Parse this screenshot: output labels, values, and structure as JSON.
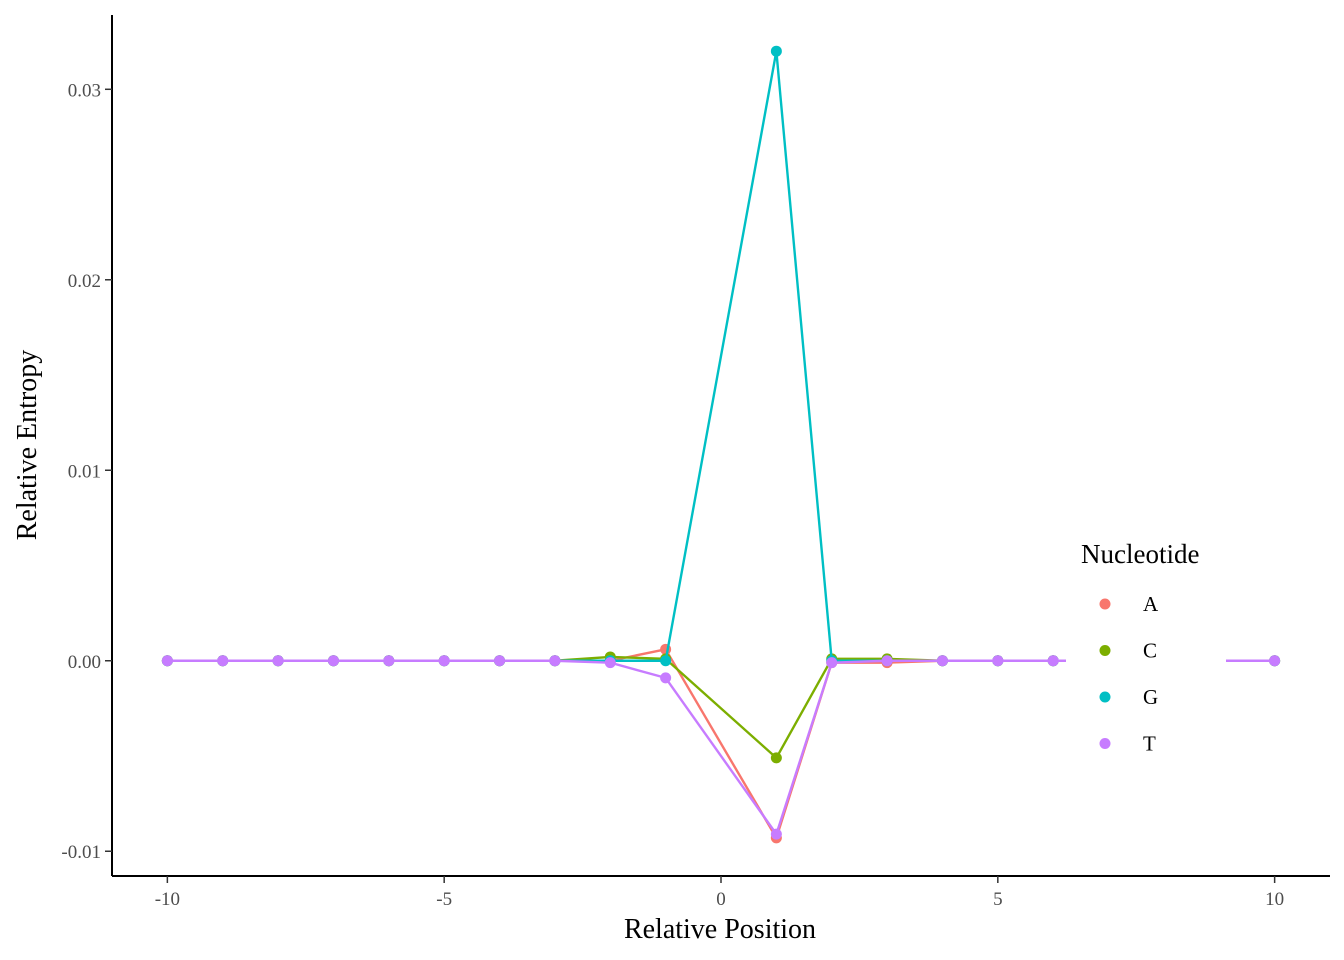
{
  "chart_data": {
    "type": "line",
    "title": "",
    "xlabel": "Relative Position",
    "ylabel": "Relative Entropy",
    "xlim": [
      -11,
      11
    ],
    "ylim": [
      -0.0113,
      0.0339
    ],
    "x_ticks": [
      -10,
      -5,
      0,
      5,
      10
    ],
    "x_tick_labels": [
      "-10",
      "-5",
      "0",
      "5",
      "10"
    ],
    "y_ticks": [
      -0.01,
      0.0,
      0.01,
      0.02,
      0.03
    ],
    "y_tick_labels": [
      "-0.01",
      "0.00",
      "0.01",
      "0.02",
      "0.03"
    ],
    "grid": false,
    "legend": {
      "title": "Nucleotide",
      "position": "right"
    },
    "x": [
      -10,
      -9,
      -8,
      -7,
      -6,
      -5,
      -4,
      -3,
      -2,
      -1,
      1,
      2,
      3,
      4,
      5,
      6,
      7,
      8,
      9,
      10
    ],
    "series": [
      {
        "name": "A",
        "color": "#F8766D",
        "values": [
          0,
          0,
          0,
          0,
          0,
          0,
          0,
          0,
          0,
          0.0006,
          -0.0093,
          -0.0001,
          -0.0001,
          0,
          0,
          0,
          0,
          0,
          0,
          0
        ]
      },
      {
        "name": "C",
        "color": "#7CAE00",
        "values": [
          0,
          0,
          0,
          0,
          0,
          0,
          0,
          0,
          0.0002,
          0.0001,
          -0.0051,
          0.0001,
          0.0001,
          0,
          0,
          0,
          0,
          0,
          0,
          0
        ]
      },
      {
        "name": "G",
        "color": "#00BFC4",
        "values": [
          0,
          0,
          0,
          0,
          0,
          0,
          0,
          0,
          0,
          0,
          0.032,
          0,
          0,
          0,
          0,
          0,
          0,
          0,
          0,
          0
        ]
      },
      {
        "name": "T",
        "color": "#C77CFF",
        "values": [
          0,
          0,
          0,
          0,
          0,
          0,
          0,
          0,
          -0.0001,
          -0.0009,
          -0.0091,
          -0.0001,
          0,
          0,
          0,
          0,
          0,
          0,
          0,
          0
        ]
      }
    ]
  }
}
